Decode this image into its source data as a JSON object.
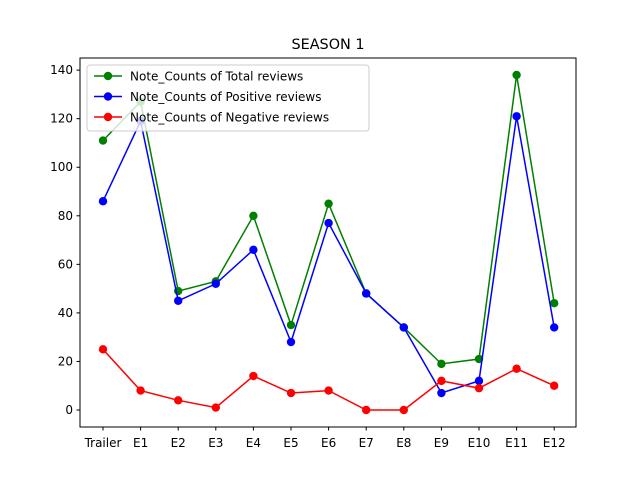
{
  "chart_data": {
    "type": "line",
    "title": "SEASON 1",
    "xlabel": "",
    "ylabel": "",
    "categories": [
      "Trailer",
      "E1",
      "E2",
      "E3",
      "E4",
      "E5",
      "E6",
      "E7",
      "E8",
      "E9",
      "E10",
      "E11",
      "E12"
    ],
    "ylim": [
      -7,
      145
    ],
    "yticks": [
      0,
      20,
      40,
      60,
      80,
      100,
      120,
      140
    ],
    "legend_position": "top-left",
    "grid": false,
    "series": [
      {
        "name": "Note_Counts of Total reviews",
        "color": "#008000",
        "values": [
          111,
          127,
          49,
          53,
          80,
          35,
          85,
          48,
          34,
          19,
          21,
          138,
          44
        ]
      },
      {
        "name": "Note_Counts of Positive reviews",
        "color": "#0000ff",
        "values": [
          86,
          119,
          45,
          52,
          66,
          28,
          77,
          48,
          34,
          7,
          12,
          121,
          34
        ]
      },
      {
        "name": "Note_Counts of Negative reviews",
        "color": "#ff0000",
        "values": [
          25,
          8,
          4,
          1,
          14,
          7,
          8,
          0,
          0,
          12,
          9,
          17,
          10
        ]
      }
    ]
  }
}
